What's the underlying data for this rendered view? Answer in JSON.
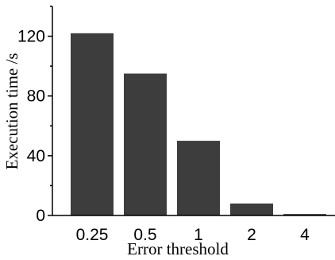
{
  "chart_data": {
    "type": "bar",
    "title": "",
    "xlabel": "Error threshold",
    "ylabel": "Execution time /s",
    "categories": [
      "0.25",
      "0.5",
      "1",
      "2",
      "4"
    ],
    "values": [
      122,
      95,
      50,
      8,
      1
    ],
    "ylim": [
      0,
      140
    ],
    "yticks": [
      0,
      40,
      80,
      120
    ],
    "grid": false,
    "legend": "none",
    "bar_color": "#3d3d3d"
  }
}
